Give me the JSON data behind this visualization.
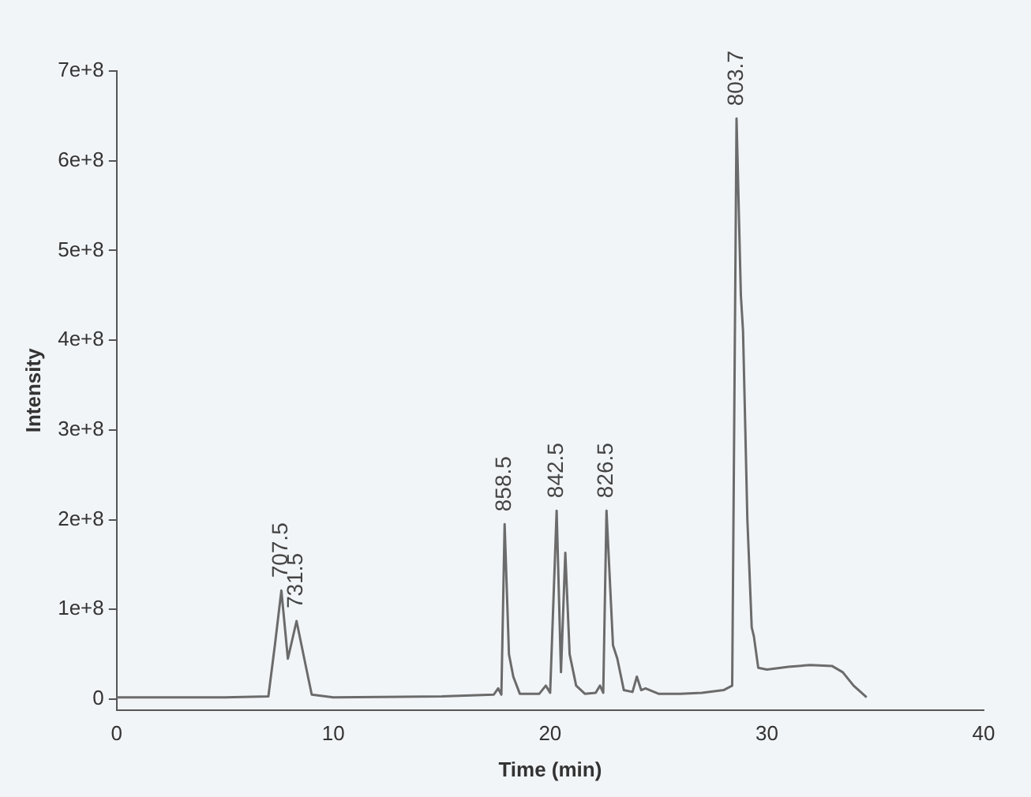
{
  "chart_data": {
    "type": "line",
    "xlabel": "Time (min)",
    "ylabel": "Intensity",
    "color": "#6b6b6b",
    "marker": "none",
    "grid": false,
    "legend": false,
    "x": [
      0,
      2,
      5,
      7,
      7.3,
      7.6,
      7.9,
      8.3,
      8.7,
      9,
      10,
      15,
      17.4,
      17.6,
      17.75,
      17.9,
      18.1,
      18.3,
      18.6,
      19.5,
      19.8,
      20,
      20.3,
      20.5,
      20.7,
      20.9,
      21.2,
      21.6,
      22.1,
      22.3,
      22.45,
      22.6,
      22.9,
      23.1,
      23.4,
      23.8,
      24,
      24.2,
      24.4,
      25,
      26,
      27,
      28,
      28.4,
      28.6,
      28.8,
      28.9,
      29.1,
      29.3,
      29.4,
      29.6,
      30,
      31,
      32,
      33,
      33.5,
      34,
      34.6
    ],
    "values": [
      2000000,
      2000000,
      2000000,
      3000000,
      60000000,
      121000000,
      45000000,
      87000000,
      40000000,
      5000000,
      2000000,
      3000000,
      5000000,
      12000000,
      5000000,
      195000000,
      50000000,
      25000000,
      6000000,
      6000000,
      15000000,
      7000000,
      210000000,
      30000000,
      163000000,
      50000000,
      15000000,
      6000000,
      7000000,
      15000000,
      7000000,
      210000000,
      60000000,
      45000000,
      10000000,
      8000000,
      25000000,
      10000000,
      12000000,
      6000000,
      6000000,
      7000000,
      10000000,
      15000000,
      647000000,
      450000000,
      410000000,
      200000000,
      80000000,
      70000000,
      35000000,
      33000000,
      36000000,
      38000000,
      37000000,
      30000000,
      15000000,
      2000000
    ],
    "xlim": [
      0,
      40
    ],
    "xticks": [
      0,
      10,
      20,
      30,
      40
    ],
    "ylim": [
      -12000000,
      700000000
    ],
    "yticks": [
      0,
      {
        "value": 100000000,
        "label": "1e+8"
      },
      {
        "value": 200000000,
        "label": "2e+8"
      },
      {
        "value": 300000000,
        "label": "3e+8"
      },
      {
        "value": 400000000,
        "label": "4e+8"
      },
      {
        "value": 500000000,
        "label": "5e+8"
      },
      {
        "value": 600000000,
        "label": "6e+8"
      },
      {
        "value": 700000000,
        "label": "7e+8"
      }
    ],
    "annotations": [
      {
        "text": "707.5",
        "x": 7.6,
        "y": 121000000
      },
      {
        "text": "731.5",
        "x": 8.3,
        "y": 87000000
      },
      {
        "text": "858.5",
        "x": 17.9,
        "y": 195000000
      },
      {
        "text": "842.5",
        "x": 20.3,
        "y": 210000000
      },
      {
        "text": "826.5",
        "x": 22.6,
        "y": 210000000
      },
      {
        "text": "803.7",
        "x": 28.6,
        "y": 647000000
      }
    ]
  }
}
